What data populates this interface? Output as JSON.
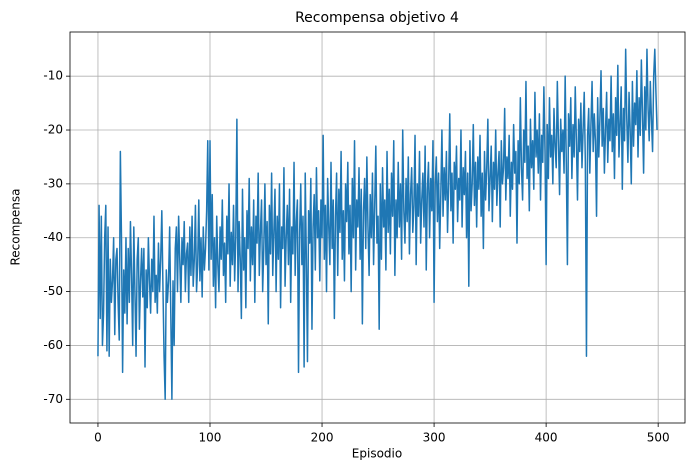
{
  "chart_data": {
    "type": "line",
    "title": "Recompensa objetivo 4",
    "xlabel": "Episodio",
    "ylabel": "Recompensa",
    "x": [
      0,
      1,
      2,
      3,
      4,
      5,
      6,
      7,
      8,
      9,
      10,
      11,
      12,
      13,
      14,
      15,
      16,
      17,
      18,
      19,
      20,
      21,
      22,
      23,
      24,
      25,
      26,
      27,
      28,
      29,
      30,
      31,
      32,
      33,
      34,
      35,
      36,
      37,
      38,
      39,
      40,
      41,
      42,
      43,
      44,
      45,
      46,
      47,
      48,
      49,
      50,
      51,
      52,
      53,
      54,
      55,
      56,
      57,
      58,
      59,
      60,
      61,
      62,
      63,
      64,
      65,
      66,
      67,
      68,
      69,
      70,
      71,
      72,
      73,
      74,
      75,
      76,
      77,
      78,
      79,
      80,
      81,
      82,
      83,
      84,
      85,
      86,
      87,
      88,
      89,
      90,
      91,
      92,
      93,
      94,
      95,
      96,
      97,
      98,
      99,
      100,
      101,
      102,
      103,
      104,
      105,
      106,
      107,
      108,
      109,
      110,
      111,
      112,
      113,
      114,
      115,
      116,
      117,
      118,
      119,
      120,
      121,
      122,
      123,
      124,
      125,
      126,
      127,
      128,
      129,
      130,
      131,
      132,
      133,
      134,
      135,
      136,
      137,
      138,
      139,
      140,
      141,
      142,
      143,
      144,
      145,
      146,
      147,
      148,
      149,
      150,
      151,
      152,
      153,
      154,
      155,
      156,
      157,
      158,
      159,
      160,
      161,
      162,
      163,
      164,
      165,
      166,
      167,
      168,
      169,
      170,
      171,
      172,
      173,
      174,
      175,
      176,
      177,
      178,
      179,
      180,
      181,
      182,
      183,
      184,
      185,
      186,
      187,
      188,
      189,
      190,
      191,
      192,
      193,
      194,
      195,
      196,
      197,
      198,
      199,
      200,
      201,
      202,
      203,
      204,
      205,
      206,
      207,
      208,
      209,
      210,
      211,
      212,
      213,
      214,
      215,
      216,
      217,
      218,
      219,
      220,
      221,
      222,
      223,
      224,
      225,
      226,
      227,
      228,
      229,
      230,
      231,
      232,
      233,
      234,
      235,
      236,
      237,
      238,
      239,
      240,
      241,
      242,
      243,
      244,
      245,
      246,
      247,
      248,
      249,
      250,
      251,
      252,
      253,
      254,
      255,
      256,
      257,
      258,
      259,
      260,
      261,
      262,
      263,
      264,
      265,
      266,
      267,
      268,
      269,
      270,
      271,
      272,
      273,
      274,
      275,
      276,
      277,
      278,
      279,
      280,
      281,
      282,
      283,
      284,
      285,
      286,
      287,
      288,
      289,
      290,
      291,
      292,
      293,
      294,
      295,
      296,
      297,
      298,
      299,
      300,
      301,
      302,
      303,
      304,
      305,
      306,
      307,
      308,
      309,
      310,
      311,
      312,
      313,
      314,
      315,
      316,
      317,
      318,
      319,
      320,
      321,
      322,
      323,
      324,
      325,
      326,
      327,
      328,
      329,
      330,
      331,
      332,
      333,
      334,
      335,
      336,
      337,
      338,
      339,
      340,
      341,
      342,
      343,
      344,
      345,
      346,
      347,
      348,
      349,
      350,
      351,
      352,
      353,
      354,
      355,
      356,
      357,
      358,
      359,
      360,
      361,
      362,
      363,
      364,
      365,
      366,
      367,
      368,
      369,
      370,
      371,
      372,
      373,
      374,
      375,
      376,
      377,
      378,
      379,
      380,
      381,
      382,
      383,
      384,
      385,
      386,
      387,
      388,
      389,
      390,
      391,
      392,
      393,
      394,
      395,
      396,
      397,
      398,
      399,
      400,
      401,
      402,
      403,
      404,
      405,
      406,
      407,
      408,
      409,
      410,
      411,
      412,
      413,
      414,
      415,
      416,
      417,
      418,
      419,
      420,
      421,
      422,
      423,
      424,
      425,
      426,
      427,
      428,
      429,
      430,
      431,
      432,
      433,
      434,
      435,
      436,
      437,
      438,
      439,
      440,
      441,
      442,
      443,
      444,
      445,
      446,
      447,
      448,
      449,
      450,
      451,
      452,
      453,
      454,
      455,
      456,
      457,
      458,
      459,
      460,
      461,
      462,
      463,
      464,
      465,
      466,
      467,
      468,
      469,
      470,
      471,
      472,
      473,
      474,
      475,
      476,
      477,
      478,
      479,
      480,
      481,
      482,
      483,
      484,
      485,
      486,
      487,
      488,
      489,
      490,
      491,
      492,
      493,
      494,
      495,
      496,
      497,
      498,
      499
    ],
    "series": [
      {
        "color": "#1f77b4",
        "values": [
          -62,
          -34,
          -55,
          -36,
          -60,
          -54,
          -40,
          -34,
          -61,
          -38,
          -62,
          -44,
          -52,
          -48,
          -40,
          -58,
          -44,
          -42,
          -52,
          -59,
          -24,
          -40,
          -65,
          -46,
          -54,
          -40,
          -56,
          -42,
          -52,
          -37,
          -47,
          -60,
          -38,
          -50,
          -62,
          -44,
          -40,
          -57,
          -48,
          -42,
          -51,
          -42,
          -64,
          -46,
          -53,
          -40,
          -48,
          -54,
          -44,
          -50,
          -36,
          -52,
          -47,
          -54,
          -41,
          -50,
          -44,
          -35,
          -49,
          -62,
          -70,
          -46,
          -52,
          -48,
          -38,
          -54,
          -70,
          -48,
          -60,
          -42,
          -38,
          -50,
          -36,
          -44,
          -52,
          -40,
          -45,
          -37,
          -50,
          -43,
          -41,
          -52,
          -38,
          -47,
          -36,
          -49,
          -44,
          -34,
          -50,
          -45,
          -33,
          -48,
          -40,
          -51,
          -38,
          -46,
          -42,
          -35,
          -22,
          -46,
          -22,
          -44,
          -32,
          -49,
          -40,
          -53,
          -36,
          -45,
          -50,
          -38,
          -44,
          -33,
          -47,
          -41,
          -52,
          -36,
          -43,
          -30,
          -49,
          -39,
          -45,
          -34,
          -48,
          -40,
          -18,
          -50,
          -37,
          -44,
          -55,
          -31,
          -46,
          -40,
          -53,
          -35,
          -42,
          -29,
          -48,
          -38,
          -45,
          -33,
          -52,
          -36,
          -41,
          -28,
          -47,
          -39,
          -33,
          -50,
          -42,
          -30,
          -45,
          -37,
          -56,
          -34,
          -43,
          -28,
          -47,
          -39,
          -31,
          -50,
          -36,
          -44,
          -30,
          -53,
          -38,
          -42,
          -27,
          -49,
          -40,
          -34,
          -45,
          -31,
          -52,
          -38,
          -43,
          -26,
          -47,
          -37,
          -33,
          -65,
          -39,
          -30,
          -45,
          -36,
          -64,
          -28,
          -44,
          -63,
          -35,
          -41,
          -29,
          -57,
          -38,
          -32,
          -46,
          -27,
          -40,
          -35,
          -48,
          -33,
          -40,
          -21,
          -44,
          -34,
          -50,
          -29,
          -38,
          -45,
          -26,
          -42,
          -33,
          -55,
          -36,
          -28,
          -47,
          -31,
          -39,
          -24,
          -44,
          -35,
          -48,
          -30,
          -37,
          -26,
          -43,
          -34,
          -50,
          -29,
          -40,
          -22,
          -46,
          -33,
          -38,
          -27,
          -44,
          -31,
          -56,
          -35,
          -29,
          -42,
          -25,
          -38,
          -47,
          -32,
          -40,
          -28,
          -45,
          -34,
          -23,
          -41,
          -36,
          -57,
          -30,
          -44,
          -27,
          -38,
          -33,
          -46,
          -24,
          -39,
          -31,
          -43,
          -28,
          -36,
          -22,
          -47,
          -33,
          -40,
          -26,
          -38,
          -30,
          -44,
          -20,
          -35,
          -41,
          -29,
          -37,
          -25,
          -43,
          -32,
          -27,
          -39,
          -34,
          -21,
          -45,
          -30,
          -36,
          -24,
          -41,
          -33,
          -28,
          -38,
          -23,
          -46,
          -31,
          -26,
          -40,
          -29,
          -35,
          -22,
          -52,
          -30,
          -25,
          -37,
          -28,
          -42,
          -32,
          -20,
          -36,
          -27,
          -33,
          -24,
          -39,
          -30,
          -17,
          -35,
          -28,
          -41,
          -26,
          -31,
          -23,
          -37,
          -29,
          -33,
          -20,
          -38,
          -27,
          -32,
          -24,
          -40,
          -28,
          -49,
          -22,
          -35,
          -30,
          -19,
          -34,
          -26,
          -38,
          -25,
          -31,
          -21,
          -36,
          -28,
          -42,
          -24,
          -33,
          -27,
          -18,
          -35,
          -29,
          -23,
          -37,
          -26,
          -31,
          -20,
          -34,
          -28,
          -24,
          -38,
          -22,
          -30,
          -27,
          -16,
          -33,
          -25,
          -29,
          -21,
          -36,
          -26,
          -31,
          -19,
          -28,
          -24,
          -41,
          -22,
          -30,
          -14,
          -27,
          -33,
          -20,
          -26,
          -11,
          -29,
          -23,
          -35,
          -18,
          -27,
          -22,
          -31,
          -13,
          -25,
          -20,
          -28,
          -17,
          -33,
          -21,
          -26,
          -12,
          -24,
          -45,
          -19,
          -29,
          -14,
          -25,
          -21,
          -30,
          -16,
          -23,
          -27,
          -11,
          -22,
          -32,
          -18,
          -24,
          -20,
          -28,
          -10,
          -26,
          -45,
          -17,
          -23,
          -14,
          -29,
          -19,
          -25,
          -12,
          -22,
          -33,
          -18,
          -24,
          -15,
          -27,
          -20,
          -13,
          -26,
          -62,
          -21,
          -16,
          -28,
          -19,
          -11,
          -24,
          -17,
          -22,
          -36,
          -14,
          -25,
          -18,
          -9,
          -23,
          -16,
          -28,
          -20,
          -13,
          -26,
          -18,
          -22,
          -10,
          -24,
          -17,
          -29,
          -14,
          -21,
          -8,
          -25,
          -19,
          -12,
          -31,
          -16,
          -22,
          -5,
          -18,
          -26,
          -13,
          -20,
          -30,
          -11,
          -23,
          -15,
          -19,
          -9,
          -25,
          -14,
          -21,
          -7,
          -17,
          -28,
          -12,
          -20,
          -5,
          -16,
          -22,
          -11,
          -18,
          -24,
          -10,
          -5,
          -13,
          -20
        ]
      }
    ],
    "xlim": [
      -24.95,
      523.95
    ],
    "ylim": [
      -74.4,
      -1.8
    ],
    "xticks": [
      0,
      100,
      200,
      300,
      400,
      500
    ],
    "yticks": [
      -70,
      -60,
      -50,
      -40,
      -30,
      -20,
      -10
    ],
    "grid": true
  }
}
